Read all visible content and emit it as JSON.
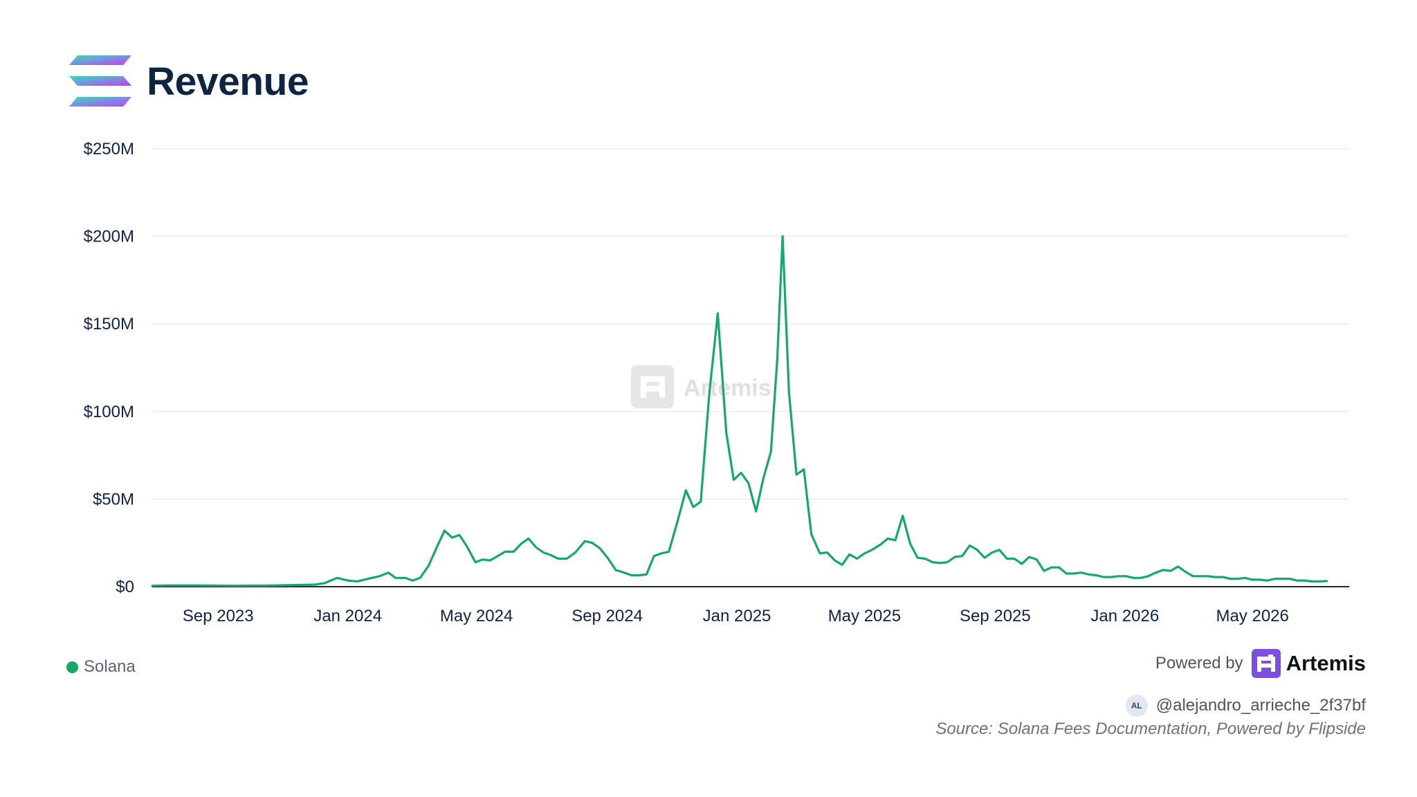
{
  "title": "Revenue",
  "brand_colors": {
    "line": "#16a86a",
    "title": "#0f2440",
    "grid": "#ececec"
  },
  "watermark": "Artemis",
  "legend": {
    "label": "Solana",
    "color": "#16a86a"
  },
  "footer": {
    "powered_by": "Powered by",
    "brand": "Artemis",
    "author_initials": "AL",
    "author_handle": "@alejandro_arrieche_2f37bf",
    "source": "Source: Solana Fees Documentation, Powered by Flipside"
  },
  "chart_data": {
    "type": "line",
    "title": "Revenue",
    "ylim": [
      0,
      250
    ],
    "y_unit": "$M",
    "y_ticks": [
      {
        "value": 0,
        "label": "$0"
      },
      {
        "value": 50,
        "label": "$50M"
      },
      {
        "value": 100,
        "label": "$100M"
      },
      {
        "value": 150,
        "label": "$150M"
      },
      {
        "value": 200,
        "label": "$200M"
      },
      {
        "value": 250,
        "label": "$250M"
      }
    ],
    "x_ticks": [
      {
        "date": "2023-09-01",
        "label": "Sep 2023"
      },
      {
        "date": "2024-01-01",
        "label": "Jan 2024"
      },
      {
        "date": "2024-05-01",
        "label": "May 2024"
      },
      {
        "date": "2024-09-01",
        "label": "Sep 2024"
      },
      {
        "date": "2025-01-01",
        "label": "Jan 2025"
      },
      {
        "date": "2025-05-01",
        "label": "May 2025"
      },
      {
        "date": "2025-09-01",
        "label": "Sep 2025"
      },
      {
        "date": "2026-01-01",
        "label": "Jan 2026"
      },
      {
        "date": "2026-05-01",
        "label": "May 2026"
      }
    ],
    "grid": true,
    "legend_position": "bottom-left",
    "series": [
      {
        "name": "Solana",
        "color": "#16a86a",
        "points": [
          [
            "2023-07-01",
            0.5
          ],
          [
            "2023-07-15",
            0.7
          ],
          [
            "2023-08-01",
            0.7
          ],
          [
            "2023-08-15",
            0.7
          ],
          [
            "2023-09-01",
            0.6
          ],
          [
            "2023-09-15",
            0.5
          ],
          [
            "2023-10-01",
            0.6
          ],
          [
            "2023-10-15",
            0.6
          ],
          [
            "2023-11-01",
            0.8
          ],
          [
            "2023-11-15",
            1
          ],
          [
            "2023-12-01",
            1.2
          ],
          [
            "2023-12-10",
            2
          ],
          [
            "2023-12-22",
            5
          ],
          [
            "2024-01-01",
            3.5
          ],
          [
            "2024-01-10",
            3
          ],
          [
            "2024-01-20",
            4.5
          ],
          [
            "2024-01-31",
            6
          ],
          [
            "2024-02-08",
            8
          ],
          [
            "2024-02-15",
            5
          ],
          [
            "2024-02-24",
            5
          ],
          [
            "2024-03-02",
            3.5
          ],
          [
            "2024-03-09",
            5
          ],
          [
            "2024-03-17",
            12
          ],
          [
            "2024-03-25",
            23
          ],
          [
            "2024-04-01",
            32
          ],
          [
            "2024-04-08",
            28
          ],
          [
            "2024-04-15",
            29.5
          ],
          [
            "2024-04-22",
            23
          ],
          [
            "2024-04-30",
            14
          ],
          [
            "2024-05-07",
            15.5
          ],
          [
            "2024-05-14",
            15
          ],
          [
            "2024-05-21",
            17.5
          ],
          [
            "2024-05-28",
            20
          ],
          [
            "2024-06-05",
            20
          ],
          [
            "2024-06-12",
            24.5
          ],
          [
            "2024-06-19",
            27.5
          ],
          [
            "2024-06-26",
            22.5
          ],
          [
            "2024-07-03",
            19.5
          ],
          [
            "2024-07-10",
            18
          ],
          [
            "2024-07-17",
            16
          ],
          [
            "2024-07-25",
            16
          ],
          [
            "2024-08-02",
            19.5
          ],
          [
            "2024-08-11",
            26
          ],
          [
            "2024-08-18",
            25
          ],
          [
            "2024-08-25",
            22
          ],
          [
            "2024-09-02",
            16
          ],
          [
            "2024-09-09",
            9.5
          ],
          [
            "2024-09-17",
            8
          ],
          [
            "2024-09-24",
            6.5
          ],
          [
            "2024-10-01",
            6.5
          ],
          [
            "2024-10-08",
            7
          ],
          [
            "2024-10-15",
            17.5
          ],
          [
            "2024-10-22",
            19
          ],
          [
            "2024-10-29",
            20
          ],
          [
            "2024-11-06",
            37
          ],
          [
            "2024-11-14",
            55
          ],
          [
            "2024-11-21",
            45.5
          ],
          [
            "2024-11-28",
            48.5
          ],
          [
            "2024-12-06",
            110
          ],
          [
            "2024-12-14",
            156
          ],
          [
            "2024-12-22",
            88
          ],
          [
            "2024-12-29",
            61
          ],
          [
            "2025-01-05",
            65
          ],
          [
            "2025-01-12",
            59
          ],
          [
            "2025-01-19",
            43
          ],
          [
            "2025-01-26",
            62
          ],
          [
            "2025-02-02",
            77
          ],
          [
            "2025-02-08",
            130
          ],
          [
            "2025-02-13",
            200
          ],
          [
            "2025-02-19",
            111
          ],
          [
            "2025-02-26",
            64
          ],
          [
            "2025-03-05",
            67
          ],
          [
            "2025-03-12",
            30
          ],
          [
            "2025-03-20",
            19
          ],
          [
            "2025-03-27",
            19.5
          ],
          [
            "2025-04-03",
            15
          ],
          [
            "2025-04-10",
            12.5
          ],
          [
            "2025-04-17",
            18.5
          ],
          [
            "2025-04-24",
            16
          ],
          [
            "2025-05-01",
            19
          ],
          [
            "2025-05-08",
            21
          ],
          [
            "2025-05-16",
            24
          ],
          [
            "2025-05-23",
            27.5
          ],
          [
            "2025-05-30",
            26.5
          ],
          [
            "2025-06-06",
            40.5
          ],
          [
            "2025-06-13",
            24.5
          ],
          [
            "2025-06-20",
            16.5
          ],
          [
            "2025-06-27",
            16
          ],
          [
            "2025-07-04",
            14
          ],
          [
            "2025-07-11",
            13.5
          ],
          [
            "2025-07-18",
            14
          ],
          [
            "2025-07-25",
            17
          ],
          [
            "2025-08-01",
            17.5
          ],
          [
            "2025-08-08",
            23.5
          ],
          [
            "2025-08-15",
            21
          ],
          [
            "2025-08-22",
            16.5
          ],
          [
            "2025-08-29",
            19.5
          ],
          [
            "2025-09-05",
            21
          ],
          [
            "2025-09-12",
            16
          ],
          [
            "2025-09-19",
            16
          ],
          [
            "2025-09-26",
            13
          ],
          [
            "2025-10-03",
            17
          ],
          [
            "2025-10-10",
            15.5
          ],
          [
            "2025-10-17",
            9
          ],
          [
            "2025-10-24",
            11
          ],
          [
            "2025-10-31",
            11
          ],
          [
            "2025-11-07",
            7.5
          ],
          [
            "2025-11-14",
            7.5
          ],
          [
            "2025-11-21",
            8
          ],
          [
            "2025-11-28",
            7
          ],
          [
            "2025-12-05",
            6.5
          ],
          [
            "2025-12-12",
            5.5
          ],
          [
            "2025-12-19",
            5.5
          ],
          [
            "2025-12-26",
            6
          ],
          [
            "2026-01-02",
            6
          ],
          [
            "2026-01-09",
            5
          ],
          [
            "2026-01-16",
            5
          ],
          [
            "2026-01-23",
            6
          ],
          [
            "2026-01-30",
            8
          ],
          [
            "2026-02-06",
            9.5
          ],
          [
            "2026-02-13",
            9
          ],
          [
            "2026-02-20",
            11.5
          ],
          [
            "2026-02-27",
            8.5
          ],
          [
            "2026-03-06",
            6
          ],
          [
            "2026-03-13",
            6
          ],
          [
            "2026-03-20",
            6
          ],
          [
            "2026-03-27",
            5.5
          ],
          [
            "2026-04-03",
            5.5
          ],
          [
            "2026-04-10",
            4.5
          ],
          [
            "2026-04-17",
            4.5
          ],
          [
            "2026-04-24",
            5
          ],
          [
            "2026-05-01",
            4
          ],
          [
            "2026-05-08",
            4
          ],
          [
            "2026-05-15",
            3.5
          ],
          [
            "2026-05-22",
            4.5
          ],
          [
            "2026-05-29",
            4.5
          ],
          [
            "2026-06-05",
            4.5
          ],
          [
            "2026-06-12",
            3.5
          ],
          [
            "2026-06-19",
            3.5
          ],
          [
            "2026-06-26",
            3
          ],
          [
            "2026-07-03",
            3
          ],
          [
            "2026-07-10",
            3.2
          ]
        ]
      }
    ]
  }
}
